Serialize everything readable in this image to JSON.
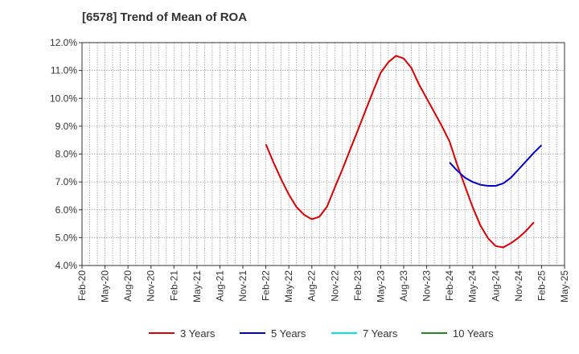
{
  "chart_data": {
    "type": "line",
    "title": "[6578]  Trend of Mean of ROA",
    "xlabel": "",
    "ylabel": "",
    "ylim": [
      4.0,
      12.0
    ],
    "y_ticks": [
      "4.0%",
      "5.0%",
      "6.0%",
      "7.0%",
      "8.0%",
      "9.0%",
      "10.0%",
      "11.0%",
      "12.0%"
    ],
    "x_ticks": [
      "Feb-20",
      "May-20",
      "Aug-20",
      "Nov-20",
      "Feb-21",
      "May-21",
      "Aug-21",
      "Nov-21",
      "Feb-22",
      "May-22",
      "Aug-22",
      "Nov-22",
      "Feb-23",
      "May-23",
      "Aug-23",
      "Nov-23",
      "Feb-24",
      "May-24",
      "Aug-24",
      "Nov-24",
      "Feb-25",
      "May-25"
    ],
    "grid": true,
    "legend_position": "bottom",
    "series": [
      {
        "name": "3 Years",
        "color": "#dd0000",
        "points": [
          [
            "Feb-22",
            8.35
          ],
          [
            "Mar-22",
            7.7
          ],
          [
            "Apr-22",
            7.1
          ],
          [
            "May-22",
            6.55
          ],
          [
            "Jun-22",
            6.1
          ],
          [
            "Jul-22",
            5.82
          ],
          [
            "Aug-22",
            5.66
          ],
          [
            "Sep-22",
            5.75
          ],
          [
            "Oct-22",
            6.12
          ],
          [
            "Nov-22",
            6.8
          ],
          [
            "Dec-22",
            7.45
          ],
          [
            "Jan-23",
            8.15
          ],
          [
            "Feb-23",
            8.85
          ],
          [
            "Mar-23",
            9.55
          ],
          [
            "Apr-23",
            10.25
          ],
          [
            "May-23",
            10.92
          ],
          [
            "Jun-23",
            11.3
          ],
          [
            "Jul-23",
            11.53
          ],
          [
            "Aug-23",
            11.43
          ],
          [
            "Sep-23",
            11.1
          ],
          [
            "Oct-23",
            10.5
          ],
          [
            "Nov-23",
            10.0
          ],
          [
            "Dec-23",
            9.5
          ],
          [
            "Jan-24",
            9.0
          ],
          [
            "Feb-24",
            8.45
          ],
          [
            "Mar-24",
            7.6
          ],
          [
            "Apr-24",
            6.85
          ],
          [
            "May-24",
            6.1
          ],
          [
            "Jun-24",
            5.45
          ],
          [
            "Jul-24",
            4.98
          ],
          [
            "Aug-24",
            4.7
          ],
          [
            "Sep-24",
            4.65
          ],
          [
            "Oct-24",
            4.8
          ],
          [
            "Nov-24",
            5.0
          ],
          [
            "Dec-24",
            5.25
          ],
          [
            "Jan-25",
            5.55
          ]
        ]
      },
      {
        "name": "5 Years",
        "color": "#0000cc",
        "points": [
          [
            "Feb-24",
            7.7
          ],
          [
            "Mar-24",
            7.4
          ],
          [
            "Apr-24",
            7.15
          ],
          [
            "May-24",
            7.0
          ],
          [
            "Jun-24",
            6.9
          ],
          [
            "Jul-24",
            6.86
          ],
          [
            "Aug-24",
            6.86
          ],
          [
            "Sep-24",
            6.95
          ],
          [
            "Oct-24",
            7.15
          ],
          [
            "Nov-24",
            7.45
          ],
          [
            "Dec-24",
            7.75
          ],
          [
            "Jan-25",
            8.05
          ],
          [
            "Feb-25",
            8.32
          ]
        ]
      },
      {
        "name": "7 Years",
        "color": "#00e5ee",
        "points": []
      },
      {
        "name": "10 Years",
        "color": "#228b22",
        "points": []
      }
    ]
  }
}
